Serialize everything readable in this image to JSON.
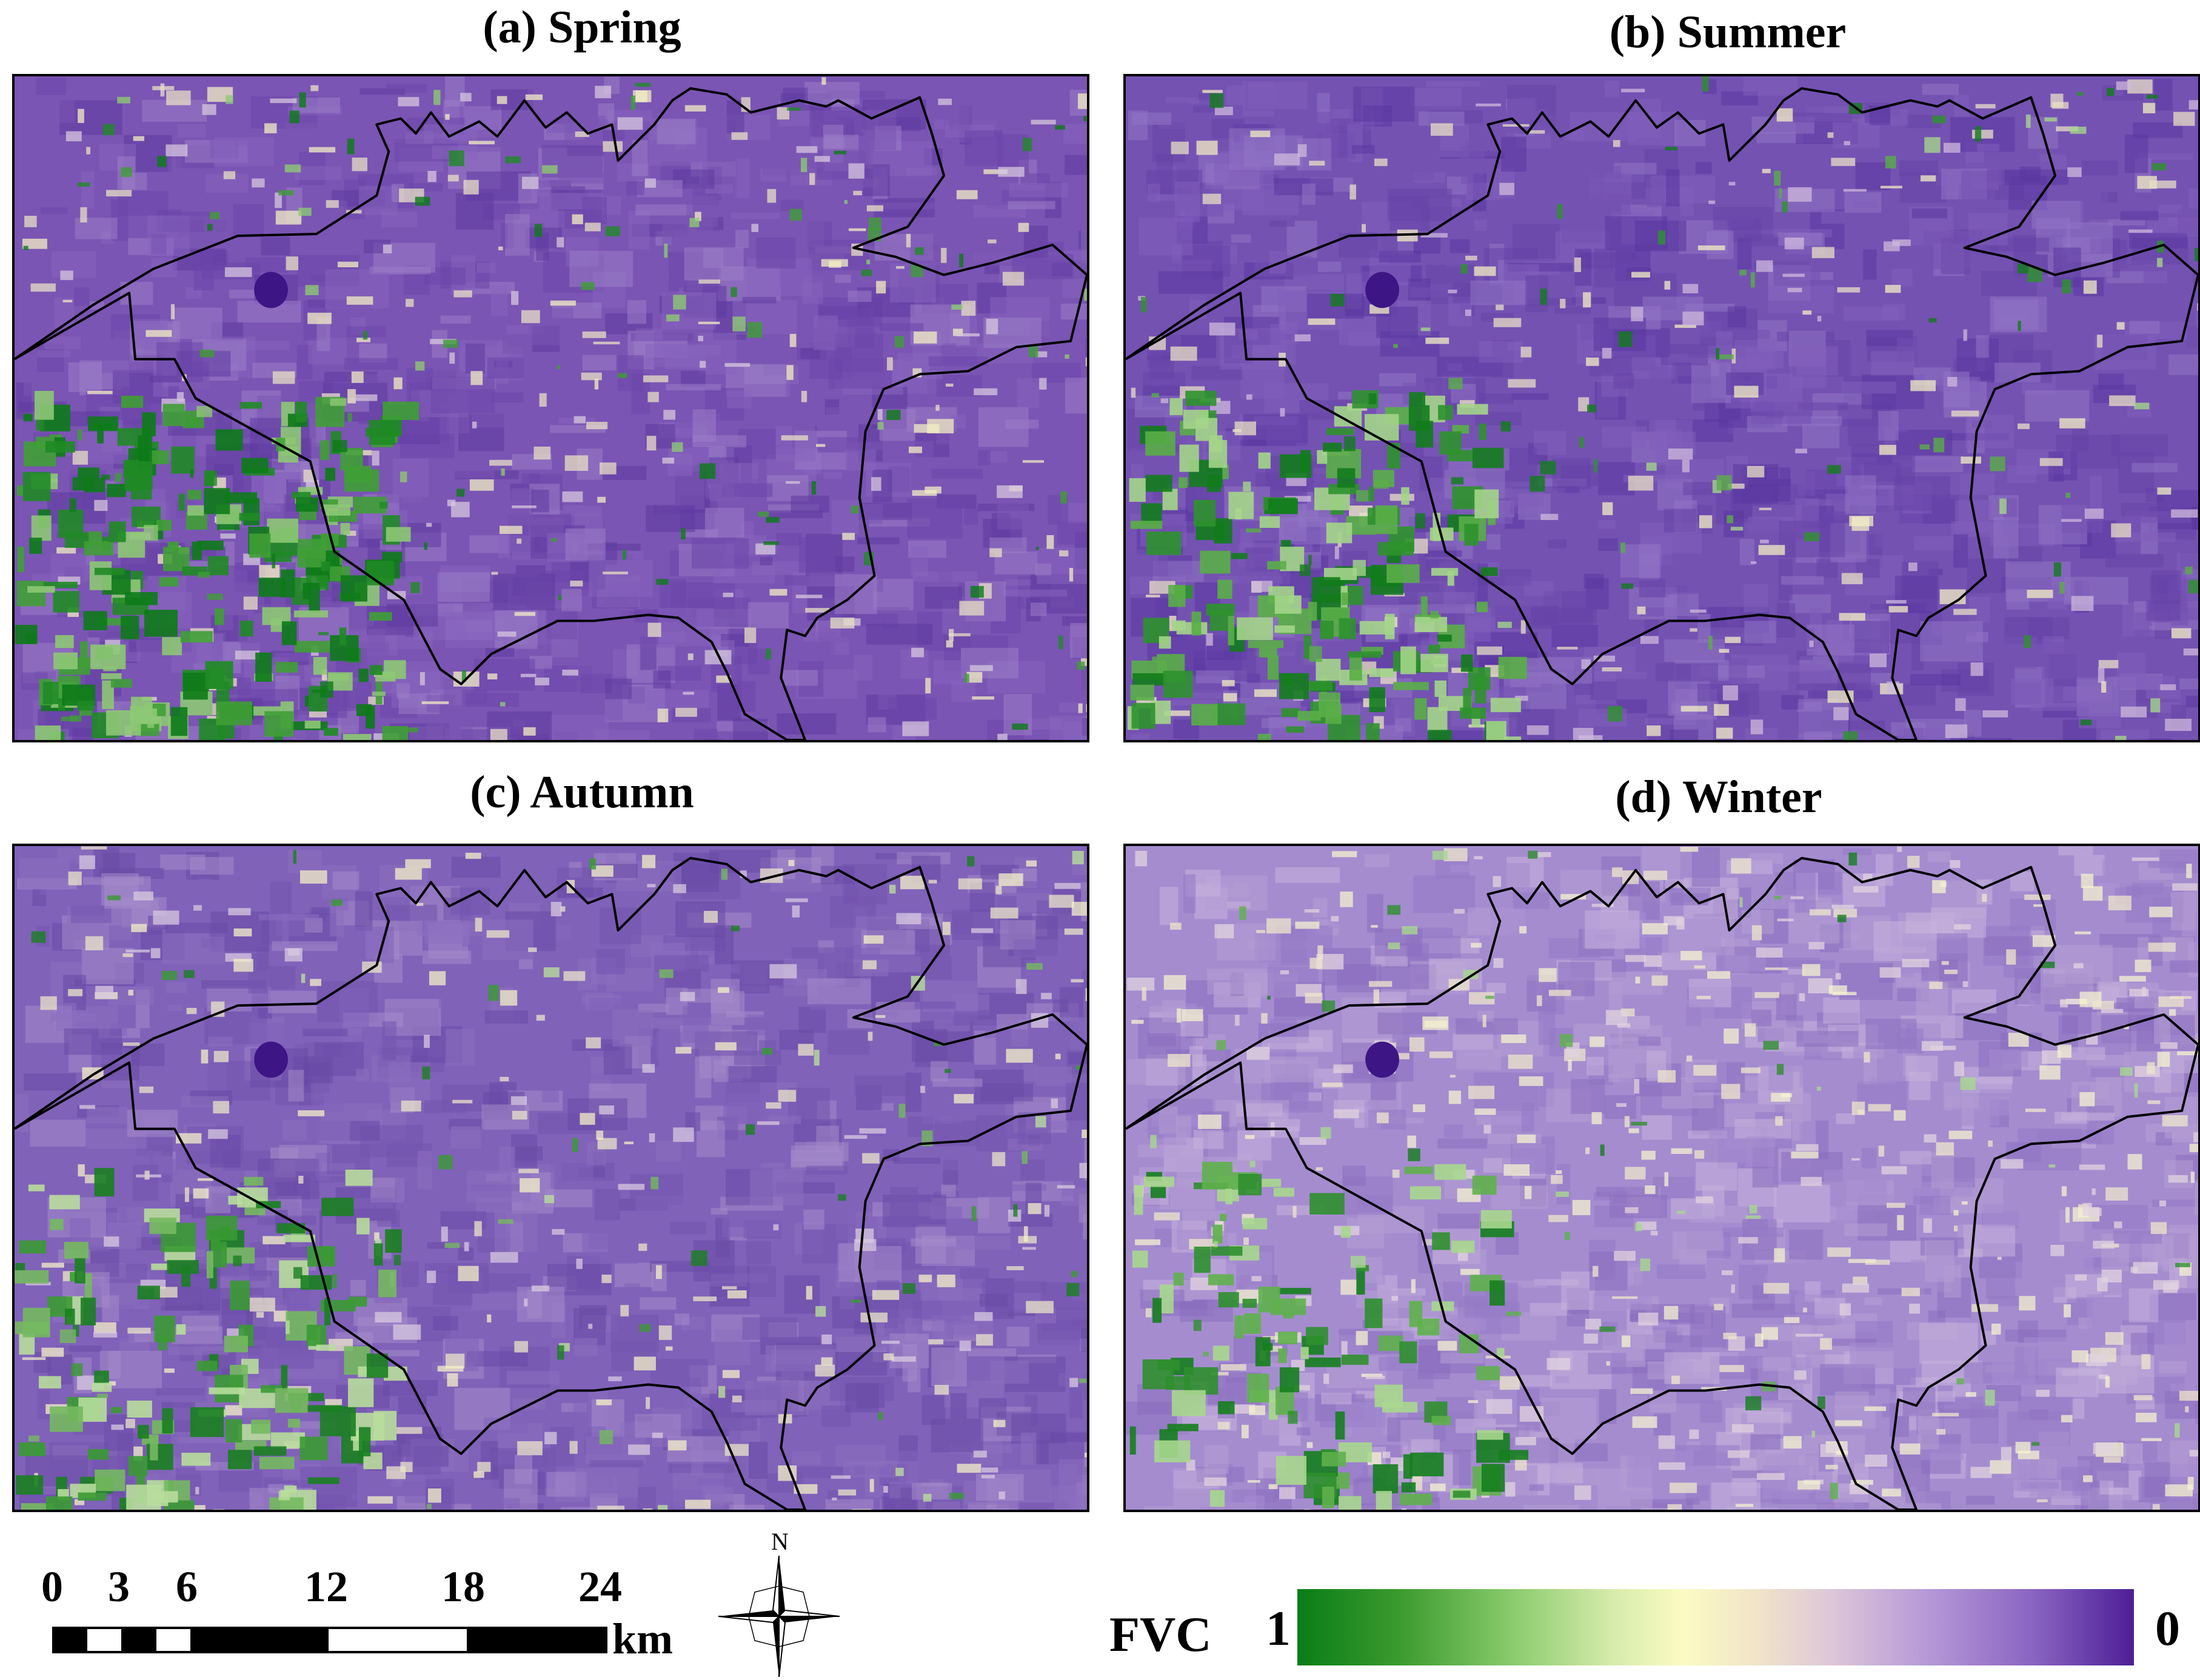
{
  "panels": [
    {
      "title": "(a) Spring",
      "season": "spring",
      "icon": "fvc-map-spring"
    },
    {
      "title": "(b) Summer",
      "season": "summer",
      "icon": "fvc-map-summer"
    },
    {
      "title": "(c) Autumn",
      "season": "autumn",
      "icon": "fvc-map-autumn"
    },
    {
      "title": "(d) Winter",
      "season": "winter",
      "icon": "fvc-map-winter"
    }
  ],
  "scale_bar": {
    "ticks": [
      "0",
      "3",
      "6",
      "12",
      "18",
      "24"
    ],
    "unit": "km"
  },
  "north_arrow": {
    "label": "N",
    "icon": "north-arrow-icon"
  },
  "legend": {
    "title": "FVC",
    "max_label": "1",
    "min_label": "0",
    "colors": {
      "high": "#0a7d16",
      "mid": "#fbfbc3",
      "low": "#4d1e96"
    }
  }
}
